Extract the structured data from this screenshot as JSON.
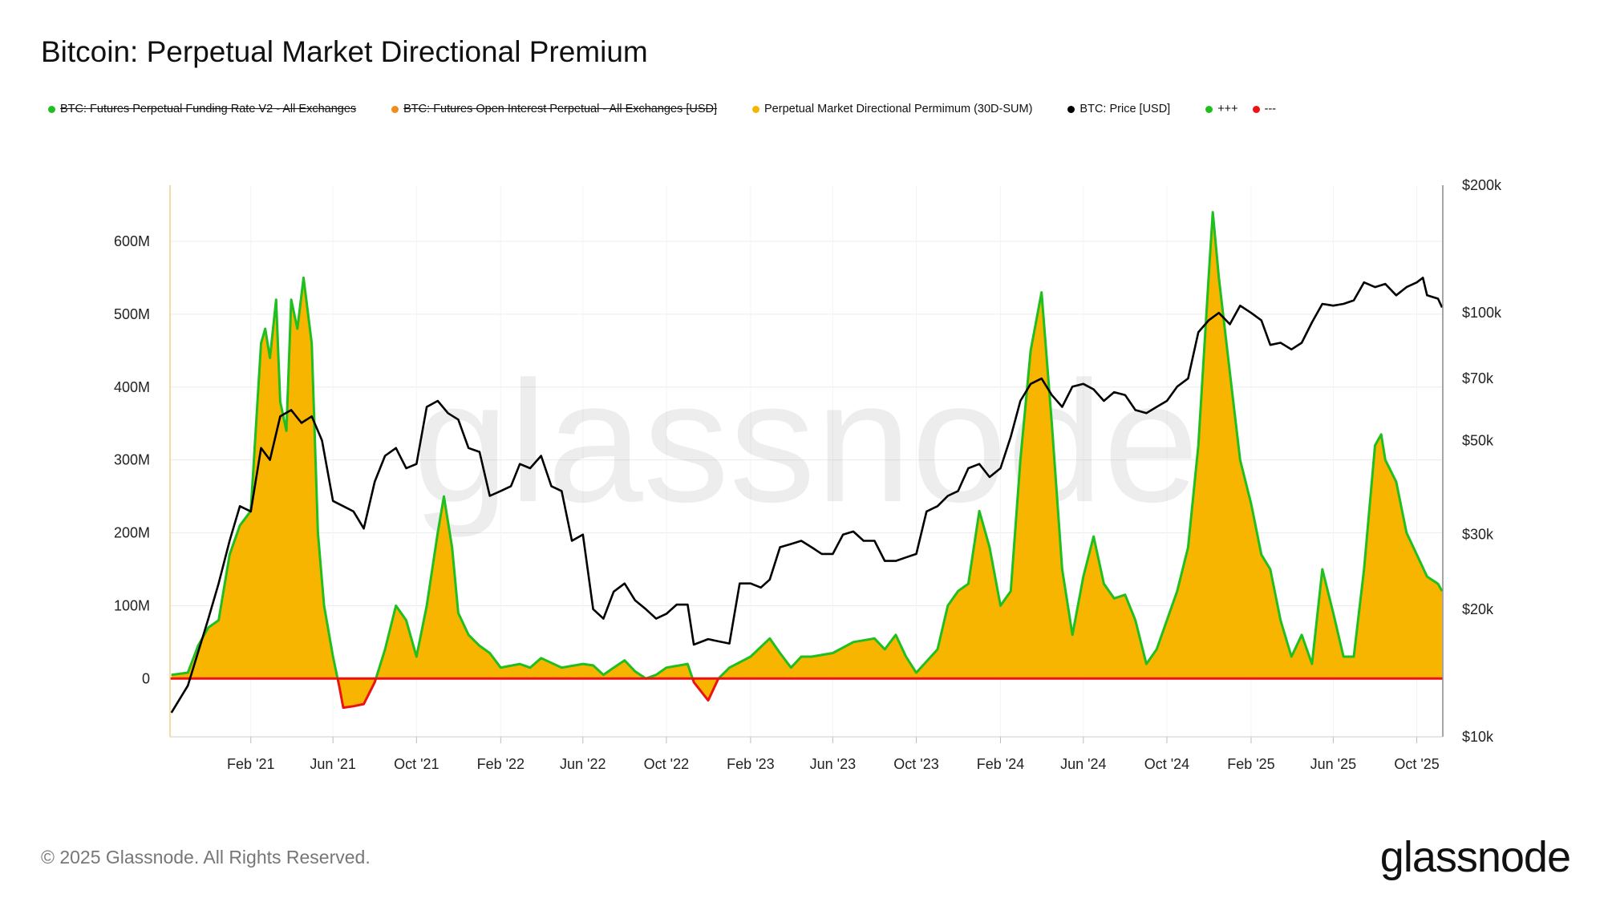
{
  "title": "Bitcoin: Perpetual Market Directional Premium",
  "legend": [
    {
      "label": "BTC: Futures Perpetual Funding Rate V2 - All Exchanges",
      "color": "#1fbf1f",
      "hidden": true
    },
    {
      "label": "BTC: Futures Open Interest Perpetual - All Exchanges [USD]",
      "color": "#f08c1c",
      "hidden": true
    },
    {
      "label": "Perpetual Market Directional Permimum (30D-SUM)",
      "color": "#f7b500",
      "hidden": false
    },
    {
      "label": "BTC: Price [USD]",
      "color": "#000000",
      "hidden": false
    },
    {
      "label": "+++",
      "color": "#1fbf1f",
      "hidden": false
    },
    {
      "label": "---",
      "color": "#ee1111",
      "hidden": false
    }
  ],
  "footer": "© 2025 Glassnode. All Rights Reserved.",
  "logo": "glassnode",
  "watermark": "glassnode",
  "chart_data": {
    "type": "area",
    "title": "Bitcoin: Perpetual Market Directional Premium",
    "x_domain": [
      "2020-10-06",
      "2025-11-08"
    ],
    "x_ticks": [
      "Feb '21",
      "Jun '21",
      "Oct '21",
      "Feb '22",
      "Jun '22",
      "Oct '22",
      "Feb '23",
      "Jun '23",
      "Oct '23",
      "Feb '24",
      "Jun '24",
      "Oct '24",
      "Feb '25",
      "Jun '25",
      "Oct '25"
    ],
    "x_tick_dates": [
      "2021-02-01",
      "2021-06-01",
      "2021-10-01",
      "2022-02-01",
      "2022-06-01",
      "2022-10-01",
      "2023-02-01",
      "2023-06-01",
      "2023-10-01",
      "2024-02-01",
      "2024-06-01",
      "2024-10-01",
      "2025-02-01",
      "2025-06-01",
      "2025-10-01"
    ],
    "y_left": {
      "ticks": [
        0,
        100,
        200,
        300,
        400,
        500,
        600
      ],
      "tick_labels": [
        "0",
        "100M",
        "200M",
        "300M",
        "400M",
        "500M",
        "600M"
      ],
      "ylim": [
        -80,
        677
      ],
      "unit": "M USD",
      "grid": true
    },
    "y_right": {
      "scale": "log",
      "ticks": [
        10,
        20,
        30,
        50,
        70,
        100,
        200
      ],
      "tick_labels": [
        "$10k",
        "$20k",
        "$30k",
        "$50k",
        "$70k",
        "$100k",
        "$200k"
      ],
      "ylim": [
        10,
        200
      ],
      "unit": "k USD"
    },
    "colors": {
      "fill": "#f7b500",
      "positive_line": "#1fbf1f",
      "negative_line": "#ee1111",
      "price": "#000000"
    },
    "series": [
      {
        "name": "Perpetual Market Directional Permimum (30D-SUM)",
        "axis": "left",
        "points": [
          [
            "2020-10-08",
            5
          ],
          [
            "2020-11-01",
            8
          ],
          [
            "2020-11-16",
            45
          ],
          [
            "2020-12-01",
            70
          ],
          [
            "2020-12-16",
            80
          ],
          [
            "2021-01-01",
            170
          ],
          [
            "2021-01-16",
            210
          ],
          [
            "2021-02-01",
            230
          ],
          [
            "2021-02-16",
            460
          ],
          [
            "2021-02-22",
            480
          ],
          [
            "2021-03-01",
            440
          ],
          [
            "2021-03-10",
            520
          ],
          [
            "2021-03-16",
            380
          ],
          [
            "2021-03-25",
            340
          ],
          [
            "2021-04-01",
            520
          ],
          [
            "2021-04-10",
            480
          ],
          [
            "2021-04-19",
            550
          ],
          [
            "2021-05-01",
            460
          ],
          [
            "2021-05-10",
            200
          ],
          [
            "2021-05-19",
            100
          ],
          [
            "2021-06-01",
            30
          ],
          [
            "2021-06-10",
            -10
          ],
          [
            "2021-06-16",
            -40
          ],
          [
            "2021-07-01",
            -38
          ],
          [
            "2021-07-16",
            -35
          ],
          [
            "2021-08-01",
            -5
          ],
          [
            "2021-08-16",
            40
          ],
          [
            "2021-09-01",
            100
          ],
          [
            "2021-09-16",
            80
          ],
          [
            "2021-10-01",
            30
          ],
          [
            "2021-10-16",
            100
          ],
          [
            "2021-11-01",
            200
          ],
          [
            "2021-11-10",
            250
          ],
          [
            "2021-11-22",
            180
          ],
          [
            "2021-12-01",
            90
          ],
          [
            "2021-12-16",
            60
          ],
          [
            "2022-01-01",
            45
          ],
          [
            "2022-01-16",
            35
          ],
          [
            "2022-02-01",
            15
          ],
          [
            "2022-03-01",
            20
          ],
          [
            "2022-03-16",
            15
          ],
          [
            "2022-04-01",
            28
          ],
          [
            "2022-05-01",
            15
          ],
          [
            "2022-06-01",
            20
          ],
          [
            "2022-06-16",
            18
          ],
          [
            "2022-07-01",
            5
          ],
          [
            "2022-07-16",
            15
          ],
          [
            "2022-08-01",
            25
          ],
          [
            "2022-08-16",
            10
          ],
          [
            "2022-09-01",
            0
          ],
          [
            "2022-09-16",
            5
          ],
          [
            "2022-10-01",
            15
          ],
          [
            "2022-11-01",
            20
          ],
          [
            "2022-11-10",
            -5
          ],
          [
            "2022-12-01",
            -30
          ],
          [
            "2022-12-16",
            0
          ],
          [
            "2023-01-01",
            15
          ],
          [
            "2023-02-01",
            30
          ],
          [
            "2023-03-01",
            55
          ],
          [
            "2023-03-16",
            35
          ],
          [
            "2023-04-01",
            15
          ],
          [
            "2023-04-16",
            30
          ],
          [
            "2023-05-01",
            30
          ],
          [
            "2023-06-01",
            35
          ],
          [
            "2023-07-01",
            50
          ],
          [
            "2023-08-01",
            55
          ],
          [
            "2023-08-16",
            40
          ],
          [
            "2023-09-01",
            60
          ],
          [
            "2023-09-16",
            30
          ],
          [
            "2023-10-01",
            8
          ],
          [
            "2023-11-01",
            40
          ],
          [
            "2023-11-16",
            100
          ],
          [
            "2023-12-01",
            120
          ],
          [
            "2023-12-16",
            130
          ],
          [
            "2024-01-01",
            230
          ],
          [
            "2024-01-16",
            180
          ],
          [
            "2024-02-01",
            100
          ],
          [
            "2024-02-16",
            120
          ],
          [
            "2024-03-01",
            300
          ],
          [
            "2024-03-16",
            450
          ],
          [
            "2024-04-01",
            530
          ],
          [
            "2024-04-16",
            350
          ],
          [
            "2024-05-01",
            150
          ],
          [
            "2024-05-16",
            60
          ],
          [
            "2024-06-01",
            140
          ],
          [
            "2024-06-16",
            195
          ],
          [
            "2024-07-01",
            130
          ],
          [
            "2024-07-16",
            110
          ],
          [
            "2024-08-01",
            115
          ],
          [
            "2024-08-16",
            80
          ],
          [
            "2024-09-01",
            20
          ],
          [
            "2024-09-16",
            40
          ],
          [
            "2024-10-01",
            80
          ],
          [
            "2024-10-16",
            120
          ],
          [
            "2024-11-01",
            180
          ],
          [
            "2024-11-16",
            320
          ],
          [
            "2024-12-01",
            550
          ],
          [
            "2024-12-07",
            640
          ],
          [
            "2024-12-16",
            550
          ],
          [
            "2025-01-01",
            420
          ],
          [
            "2025-01-16",
            300
          ],
          [
            "2025-02-01",
            240
          ],
          [
            "2025-02-16",
            170
          ],
          [
            "2025-03-01",
            150
          ],
          [
            "2025-03-16",
            80
          ],
          [
            "2025-04-01",
            30
          ],
          [
            "2025-04-16",
            60
          ],
          [
            "2025-05-01",
            20
          ],
          [
            "2025-05-16",
            150
          ],
          [
            "2025-06-01",
            90
          ],
          [
            "2025-06-16",
            30
          ],
          [
            "2025-07-01",
            30
          ],
          [
            "2025-07-16",
            150
          ],
          [
            "2025-08-01",
            320
          ],
          [
            "2025-08-10",
            335
          ],
          [
            "2025-08-16",
            300
          ],
          [
            "2025-09-01",
            270
          ],
          [
            "2025-09-16",
            200
          ],
          [
            "2025-10-01",
            170
          ],
          [
            "2025-10-16",
            140
          ],
          [
            "2025-11-01",
            130
          ],
          [
            "2025-11-07",
            120
          ]
        ]
      },
      {
        "name": "BTC: Price [USD]",
        "axis": "right",
        "points": [
          [
            "2020-10-08",
            11.4
          ],
          [
            "2020-11-01",
            13.2
          ],
          [
            "2020-12-01",
            19
          ],
          [
            "2020-12-16",
            23
          ],
          [
            "2021-01-01",
            29
          ],
          [
            "2021-01-16",
            35
          ],
          [
            "2021-02-01",
            34
          ],
          [
            "2021-02-16",
            48
          ],
          [
            "2021-03-01",
            45
          ],
          [
            "2021-03-16",
            57
          ],
          [
            "2021-04-01",
            59
          ],
          [
            "2021-04-16",
            55
          ],
          [
            "2021-05-01",
            57
          ],
          [
            "2021-05-16",
            50
          ],
          [
            "2021-06-01",
            36
          ],
          [
            "2021-06-16",
            35
          ],
          [
            "2021-07-01",
            34
          ],
          [
            "2021-07-16",
            31
          ],
          [
            "2021-08-01",
            40
          ],
          [
            "2021-08-16",
            46
          ],
          [
            "2021-09-01",
            48
          ],
          [
            "2021-09-16",
            43
          ],
          [
            "2021-10-01",
            44
          ],
          [
            "2021-10-16",
            60
          ],
          [
            "2021-11-01",
            62
          ],
          [
            "2021-11-16",
            58
          ],
          [
            "2021-12-01",
            56
          ],
          [
            "2021-12-16",
            48
          ],
          [
            "2022-01-01",
            47
          ],
          [
            "2022-01-16",
            37
          ],
          [
            "2022-02-01",
            38
          ],
          [
            "2022-02-16",
            39
          ],
          [
            "2022-03-01",
            44
          ],
          [
            "2022-03-16",
            43
          ],
          [
            "2022-04-01",
            46
          ],
          [
            "2022-04-16",
            39
          ],
          [
            "2022-05-01",
            38
          ],
          [
            "2022-05-16",
            29
          ],
          [
            "2022-06-01",
            30
          ],
          [
            "2022-06-16",
            20
          ],
          [
            "2022-07-01",
            19
          ],
          [
            "2022-07-16",
            22
          ],
          [
            "2022-08-01",
            23
          ],
          [
            "2022-08-16",
            21
          ],
          [
            "2022-09-01",
            20
          ],
          [
            "2022-09-16",
            19
          ],
          [
            "2022-10-01",
            19.5
          ],
          [
            "2022-10-16",
            20.5
          ],
          [
            "2022-11-01",
            20.5
          ],
          [
            "2022-11-10",
            16.5
          ],
          [
            "2022-12-01",
            17
          ],
          [
            "2022-12-16",
            16.8
          ],
          [
            "2023-01-01",
            16.6
          ],
          [
            "2023-01-16",
            23
          ],
          [
            "2023-02-01",
            23
          ],
          [
            "2023-02-16",
            22.5
          ],
          [
            "2023-03-01",
            23.5
          ],
          [
            "2023-03-16",
            28
          ],
          [
            "2023-04-01",
            28.5
          ],
          [
            "2023-04-16",
            29
          ],
          [
            "2023-05-01",
            28
          ],
          [
            "2023-05-16",
            27
          ],
          [
            "2023-06-01",
            27
          ],
          [
            "2023-06-16",
            30
          ],
          [
            "2023-07-01",
            30.5
          ],
          [
            "2023-07-16",
            29
          ],
          [
            "2023-08-01",
            29
          ],
          [
            "2023-08-16",
            26
          ],
          [
            "2023-09-01",
            26
          ],
          [
            "2023-09-16",
            26.5
          ],
          [
            "2023-10-01",
            27
          ],
          [
            "2023-10-16",
            34
          ],
          [
            "2023-11-01",
            35
          ],
          [
            "2023-11-16",
            37
          ],
          [
            "2023-12-01",
            38
          ],
          [
            "2023-12-16",
            43
          ],
          [
            "2024-01-01",
            44
          ],
          [
            "2024-01-16",
            41
          ],
          [
            "2024-02-01",
            43
          ],
          [
            "2024-02-16",
            51
          ],
          [
            "2024-03-01",
            62
          ],
          [
            "2024-03-16",
            68
          ],
          [
            "2024-04-01",
            70
          ],
          [
            "2024-04-16",
            64
          ],
          [
            "2024-05-01",
            60
          ],
          [
            "2024-05-16",
            67
          ],
          [
            "2024-06-01",
            68
          ],
          [
            "2024-06-16",
            66
          ],
          [
            "2024-07-01",
            62
          ],
          [
            "2024-07-16",
            65
          ],
          [
            "2024-08-01",
            64
          ],
          [
            "2024-08-16",
            59
          ],
          [
            "2024-09-01",
            58
          ],
          [
            "2024-09-16",
            60
          ],
          [
            "2024-10-01",
            62
          ],
          [
            "2024-10-16",
            67
          ],
          [
            "2024-11-01",
            70
          ],
          [
            "2024-11-16",
            90
          ],
          [
            "2024-12-01",
            96
          ],
          [
            "2024-12-16",
            100
          ],
          [
            "2025-01-01",
            94
          ],
          [
            "2025-01-16",
            104
          ],
          [
            "2025-02-01",
            100
          ],
          [
            "2025-02-16",
            96
          ],
          [
            "2025-03-01",
            84
          ],
          [
            "2025-03-16",
            85
          ],
          [
            "2025-04-01",
            82
          ],
          [
            "2025-04-16",
            85
          ],
          [
            "2025-05-01",
            95
          ],
          [
            "2025-05-16",
            105
          ],
          [
            "2025-06-01",
            104
          ],
          [
            "2025-06-16",
            105
          ],
          [
            "2025-07-01",
            107
          ],
          [
            "2025-07-16",
            118
          ],
          [
            "2025-08-01",
            115
          ],
          [
            "2025-08-16",
            117
          ],
          [
            "2025-09-01",
            110
          ],
          [
            "2025-09-16",
            115
          ],
          [
            "2025-10-01",
            118
          ],
          [
            "2025-10-10",
            121
          ],
          [
            "2025-10-16",
            110
          ],
          [
            "2025-11-01",
            108
          ],
          [
            "2025-11-07",
            103
          ]
        ]
      }
    ]
  }
}
